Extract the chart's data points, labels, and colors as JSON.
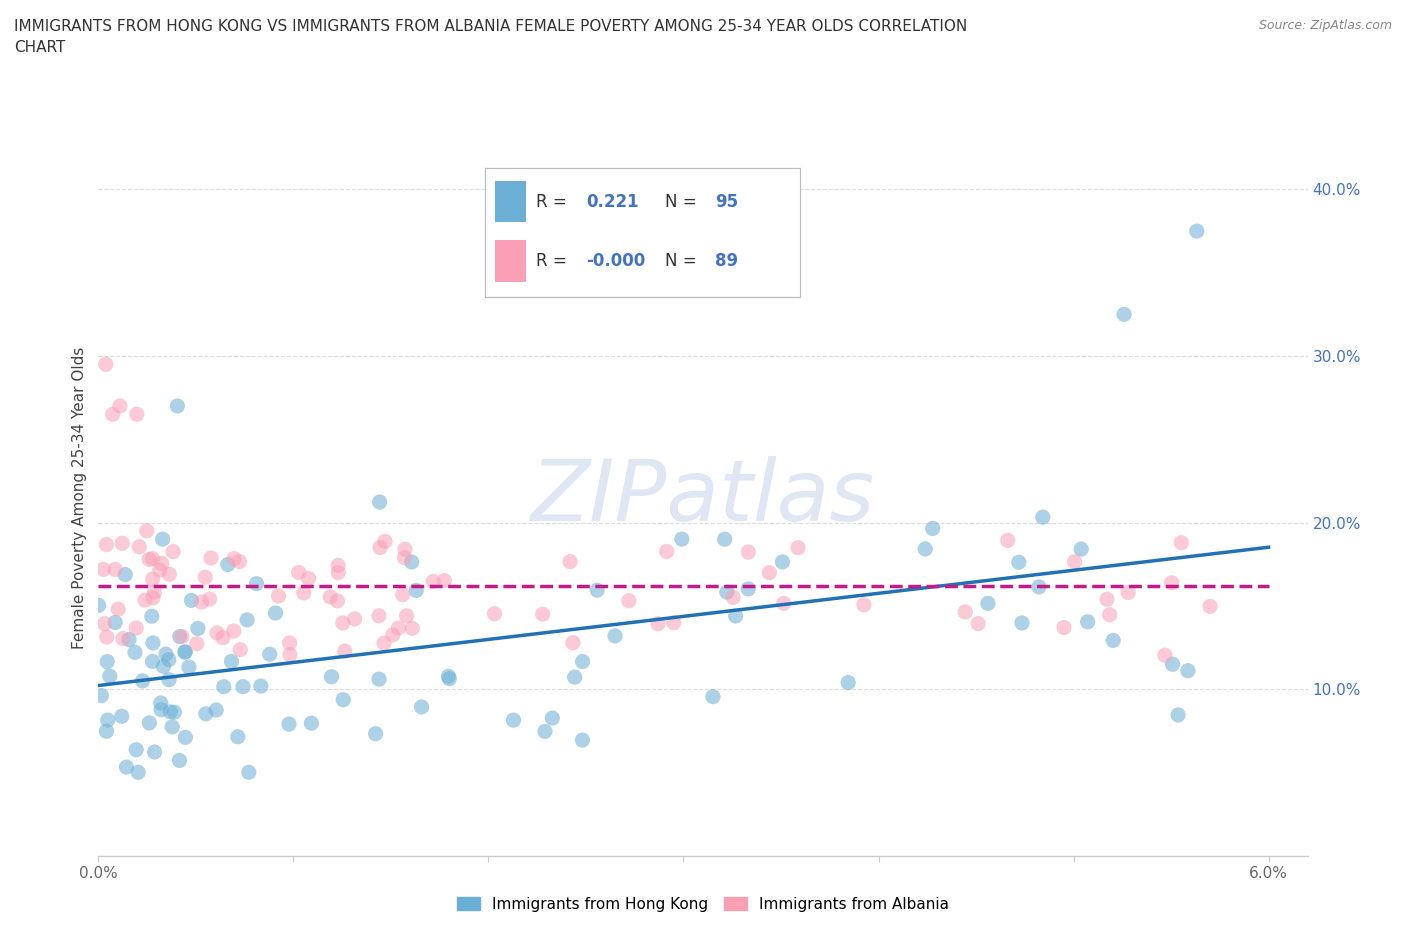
{
  "title": "IMMIGRANTS FROM HONG KONG VS IMMIGRANTS FROM ALBANIA FEMALE POVERTY AMONG 25-34 YEAR OLDS CORRELATION\nCHART",
  "source_text": "Source: ZipAtlas.com",
  "ylabel": "Female Poverty Among 25-34 Year Olds",
  "xlim": [
    0.0,
    0.062
  ],
  "ylim": [
    0.0,
    0.43
  ],
  "hk_color": "#6baed6",
  "hk_line_color": "#2171b5",
  "alb_color": "#fa9fb5",
  "alb_line_color": "#c51b8a",
  "hk_R": 0.221,
  "hk_N": 95,
  "alb_R": -0.0,
  "alb_N": 89,
  "watermark": "ZIPatlas",
  "legend_label_hk": "Immigrants from Hong Kong",
  "legend_label_alb": "Immigrants from Albania",
  "stat_color": "#4472c4",
  "background_color": "#ffffff",
  "grid_color": "#dddddd",
  "spine_color": "#cccccc",
  "title_color": "#333333",
  "source_color": "#888888"
}
